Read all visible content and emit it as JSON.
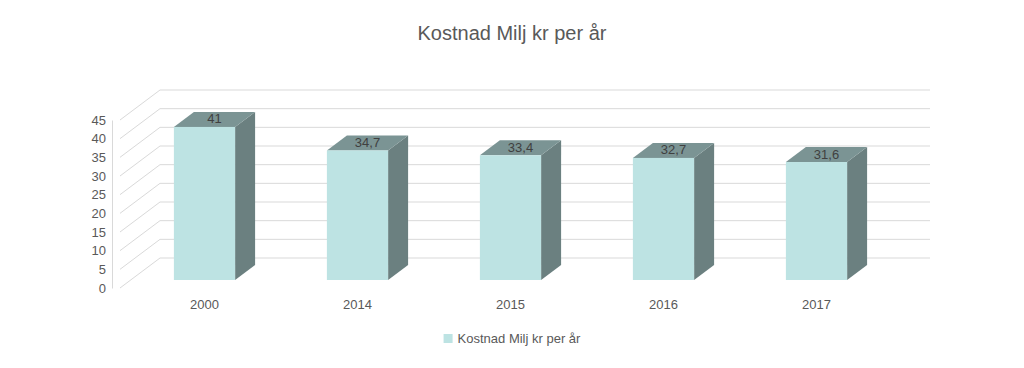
{
  "chart_data": {
    "type": "bar",
    "title": "Kostnad Milj kr per år",
    "categories": [
      "2000",
      "2014",
      "2015",
      "2016",
      "2017"
    ],
    "series": [
      {
        "name": "Kostnad Milj kr per år",
        "color": "#bde3e3",
        "values": [
          41,
          34.7,
          33.4,
          32.7,
          31.6
        ],
        "value_labels": [
          "41",
          "34,7",
          "33,4",
          "32,7",
          "31,6"
        ]
      }
    ],
    "ylim": [
      0,
      45
    ],
    "yticks": [
      0,
      5,
      10,
      15,
      20,
      25,
      30,
      35,
      40,
      45
    ],
    "grid": true,
    "data_labels": true,
    "legend": "bottom"
  }
}
